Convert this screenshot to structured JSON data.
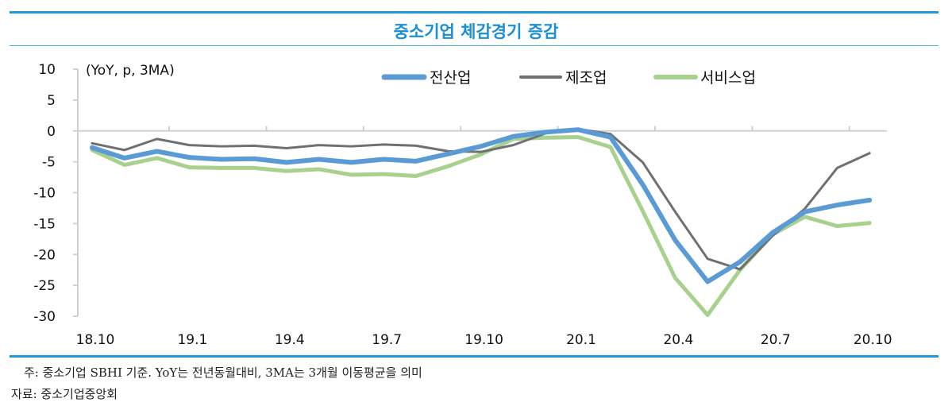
{
  "title": "중소기업 체감경기 증감",
  "notes": {
    "note": "주: 중소기업 SBHI 기준. YoY는 전년동월대비, 3MA는 3개월 이동평균을 의미",
    "source": "자료: 중소기업중앙회"
  },
  "chart_data": {
    "type": "line",
    "title": "중소기업 체감경기 증감",
    "unit_label": "(YoY, p, 3MA)",
    "ylim": [
      -30,
      10
    ],
    "yticks": [
      10,
      5,
      0,
      -5,
      -10,
      -15,
      -20,
      -25,
      -30
    ],
    "grid": false,
    "legend": "top",
    "categories": [
      "18.10",
      "18.11",
      "18.12",
      "19.1",
      "19.2",
      "19.3",
      "19.4",
      "19.5",
      "19.6",
      "19.7",
      "19.8",
      "19.9",
      "19.10",
      "19.11",
      "19.12",
      "20.1",
      "20.2",
      "20.3",
      "20.4",
      "20.5",
      "20.6",
      "20.7",
      "20.8",
      "20.9",
      "20.10"
    ],
    "xtick_labels": [
      "18.10",
      "19.1",
      "19.4",
      "19.7",
      "19.10",
      "20.1",
      "20.4",
      "20.7",
      "20.10"
    ],
    "series": [
      {
        "name": "전산업",
        "color": "#5b9bd5",
        "values": [
          -2.7,
          -4.4,
          -3.3,
          -4.3,
          -4.6,
          -4.5,
          -5.1,
          -4.6,
          -5.1,
          -4.6,
          -4.9,
          -3.7,
          -2.5,
          -0.9,
          -0.2,
          0.2,
          -1.0,
          -8.7,
          -17.7,
          -24.4,
          -21.2,
          -16.5,
          -13.1,
          -12.0,
          -11.2
        ]
      },
      {
        "name": "제조업",
        "color": "#707070",
        "values": [
          -2.0,
          -3.1,
          -1.3,
          -2.3,
          -2.5,
          -2.4,
          -2.8,
          -2.3,
          -2.5,
          -2.2,
          -2.4,
          -3.3,
          -3.4,
          -2.3,
          -0.4,
          0.3,
          -0.5,
          -5.1,
          -13.1,
          -20.7,
          -22.4,
          -17.0,
          -12.6,
          -6.0,
          -3.6
        ]
      },
      {
        "name": "서비스업",
        "color": "#a9d18e",
        "values": [
          -3.1,
          -5.5,
          -4.4,
          -5.9,
          -6.0,
          -6.0,
          -6.5,
          -6.2,
          -7.1,
          -7.0,
          -7.3,
          -5.7,
          -3.8,
          -1.3,
          -1.1,
          -1.0,
          -2.6,
          -13.0,
          -23.8,
          -29.8,
          -22.5,
          -16.8,
          -13.9,
          -15.4,
          -14.9
        ]
      }
    ]
  }
}
